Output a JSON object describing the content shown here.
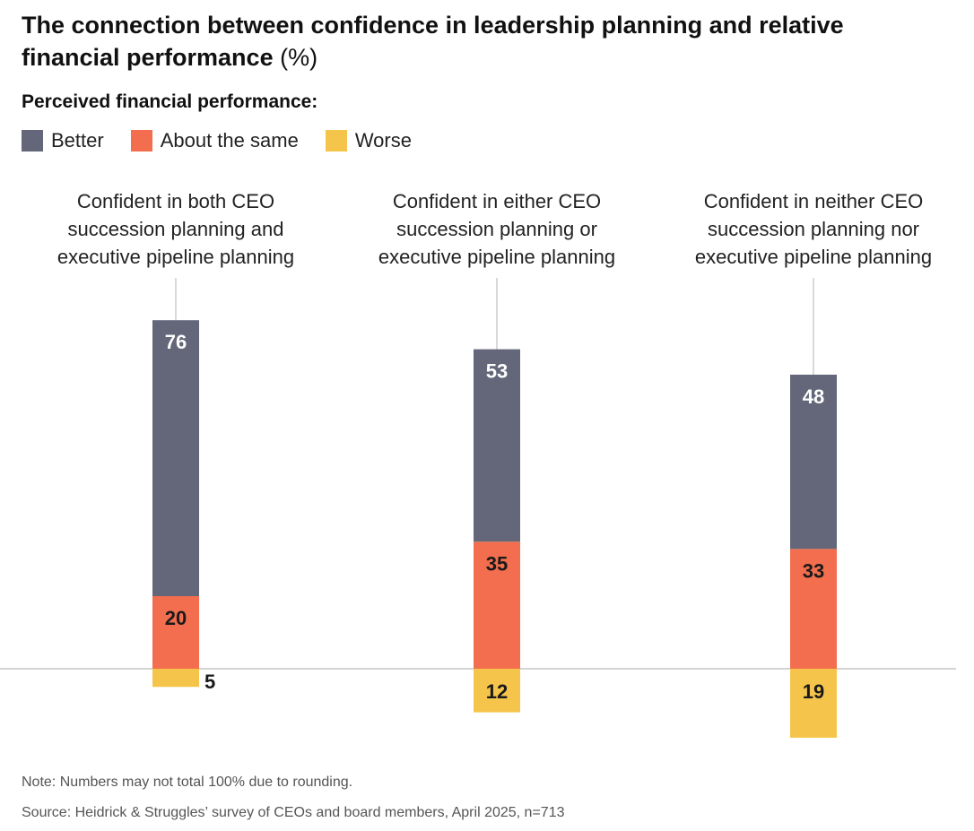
{
  "title": {
    "text": "The connection between confidence in leadership planning and relative financial performance",
    "unit": "(%)"
  },
  "legend": {
    "heading": "Perceived financial performance:",
    "items": [
      {
        "name": "Better",
        "color": "#636779"
      },
      {
        "name": "About the same",
        "color": "#f26e4e"
      },
      {
        "name": "Worse",
        "color": "#f5c54b"
      }
    ]
  },
  "chart_data": {
    "type": "bar",
    "stacked": "diverging",
    "baseline": 0,
    "categories": [
      [
        "Confident in both CEO",
        "succession planning and",
        "executive pipeline planning"
      ],
      [
        "Confident in either CEO",
        "succession planning or",
        "executive pipeline planning"
      ],
      [
        "Confident in neither CEO",
        "succession planning nor",
        "executive pipeline planning"
      ]
    ],
    "series": [
      {
        "name": "Better",
        "color": "#636779",
        "direction": "up",
        "values": [
          76,
          53,
          48
        ]
      },
      {
        "name": "About the same",
        "color": "#f26e4e",
        "direction": "up",
        "values": [
          20,
          35,
          33
        ]
      },
      {
        "name": "Worse",
        "color": "#f5c54b",
        "direction": "down",
        "values": [
          5,
          12,
          19
        ]
      }
    ],
    "value_label_colors": {
      "Better": "#ffffff",
      "About the same": "#1a1a1a",
      "Worse": "#1a1a1a"
    },
    "ylabel": "",
    "xlabel": "",
    "grid": false
  },
  "footer": {
    "note": "Note: Numbers may not total 100% due to rounding.",
    "source": "Source: Heidrick & Struggles’ survey of CEOs and board members, April 2025, n=713"
  }
}
